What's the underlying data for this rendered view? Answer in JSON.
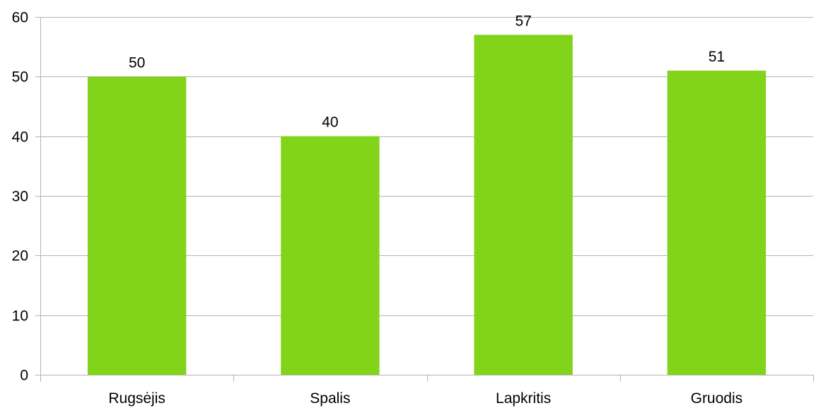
{
  "chart_data": {
    "type": "bar",
    "title": "",
    "xlabel": "",
    "ylabel": "",
    "categories": [
      "Rugsėjis",
      "Spalis",
      "Lapkritis",
      "Gruodis"
    ],
    "values": [
      50,
      40,
      57,
      51
    ],
    "data_labels": [
      "50",
      "40",
      "57",
      "51"
    ],
    "ylim": [
      0,
      60
    ],
    "yticks": [
      0,
      10,
      20,
      30,
      40,
      50,
      60
    ],
    "ytick_labels": [
      "0",
      "10",
      "20",
      "30",
      "40",
      "50",
      "60"
    ],
    "grid": true,
    "legend": "none",
    "bar_color": "#81d41a"
  }
}
